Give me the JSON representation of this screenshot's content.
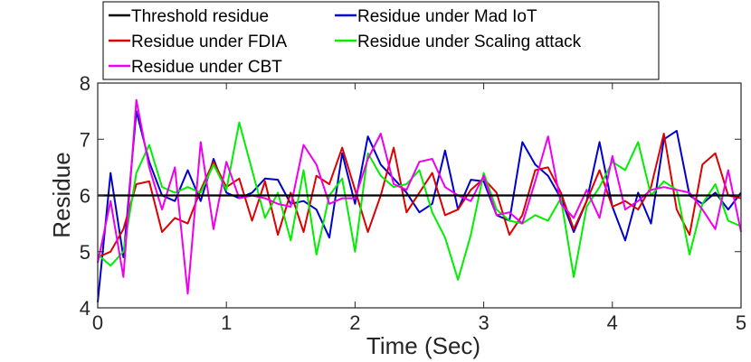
{
  "chart_data": {
    "type": "line",
    "xlabel": "Time (Sec)",
    "ylabel": "Residue",
    "xlim": [
      0,
      5
    ],
    "ylim": [
      4,
      8
    ],
    "xticks": [
      0,
      1,
      2,
      3,
      4,
      5
    ],
    "yticks": [
      4,
      5,
      6,
      7,
      8
    ],
    "grid": false,
    "legend_position": "top",
    "series": [
      {
        "name": "Threshold residue",
        "color": "#000000",
        "x": [
          0,
          5
        ],
        "y": [
          6.0,
          6.0
        ]
      },
      {
        "name": "Residue under Mad IoT",
        "color": "#0000cc",
        "x": [
          0,
          0.1,
          0.2,
          0.3,
          0.4,
          0.5,
          0.6,
          0.7,
          0.8,
          0.9,
          1.0,
          1.1,
          1.2,
          1.3,
          1.4,
          1.5,
          1.6,
          1.7,
          1.8,
          1.9,
          2.0,
          2.1,
          2.2,
          2.3,
          2.4,
          2.5,
          2.6,
          2.7,
          2.8,
          2.9,
          3.0,
          3.1,
          3.2,
          3.3,
          3.4,
          3.5,
          3.6,
          3.7,
          3.8,
          3.9,
          4.0,
          4.1,
          4.2,
          4.3,
          4.4,
          4.5,
          4.6,
          4.7,
          4.8,
          4.9,
          5.0
        ],
        "y": [
          4.1,
          6.4,
          4.9,
          7.5,
          6.6,
          6.0,
          5.9,
          6.45,
          5.9,
          6.65,
          6.05,
          5.95,
          6.05,
          6.3,
          6.28,
          5.85,
          5.9,
          5.75,
          5.25,
          6.75,
          5.85,
          7.05,
          6.55,
          6.3,
          6.05,
          5.7,
          5.85,
          6.8,
          5.75,
          6.28,
          6.25,
          5.65,
          5.55,
          6.95,
          6.55,
          6.35,
          5.95,
          5.35,
          5.9,
          6.95,
          5.8,
          5.2,
          6.05,
          5.5,
          7.0,
          7.15,
          6.0,
          5.85,
          6.05,
          5.75,
          6.05
        ]
      },
      {
        "name": "Residue under FDIA",
        "color": "#dd0000",
        "x": [
          0,
          0.1,
          0.2,
          0.3,
          0.4,
          0.5,
          0.6,
          0.7,
          0.8,
          0.9,
          1.0,
          1.1,
          1.2,
          1.3,
          1.4,
          1.5,
          1.6,
          1.7,
          1.8,
          1.9,
          2.0,
          2.1,
          2.2,
          2.3,
          2.4,
          2.5,
          2.6,
          2.7,
          2.8,
          2.9,
          3.0,
          3.1,
          3.2,
          3.3,
          3.4,
          3.5,
          3.6,
          3.7,
          3.8,
          3.9,
          4.0,
          4.1,
          4.2,
          4.3,
          4.4,
          4.5,
          4.6,
          4.7,
          4.8,
          4.9,
          5.0
        ],
        "y": [
          4.9,
          5.0,
          5.4,
          6.2,
          6.25,
          5.35,
          5.6,
          5.5,
          6.1,
          6.6,
          6.15,
          6.3,
          5.55,
          6.25,
          5.3,
          6.05,
          5.35,
          6.35,
          6.2,
          6.85,
          6.1,
          5.35,
          6.0,
          6.85,
          5.7,
          6.05,
          6.4,
          5.65,
          5.75,
          6.1,
          6.3,
          6.05,
          5.3,
          5.65,
          6.45,
          6.5,
          6.05,
          5.4,
          5.9,
          6.45,
          5.8,
          5.9,
          5.75,
          6.15,
          7.1,
          5.75,
          5.3,
          6.55,
          6.75,
          6.0,
          5.95
        ]
      },
      {
        "name": "Residue under Scaling attack",
        "color": "#00ee00",
        "x": [
          0,
          0.1,
          0.2,
          0.3,
          0.4,
          0.5,
          0.6,
          0.7,
          0.8,
          0.9,
          1.0,
          1.1,
          1.2,
          1.3,
          1.4,
          1.5,
          1.6,
          1.7,
          1.8,
          1.9,
          2.0,
          2.1,
          2.2,
          2.3,
          2.4,
          2.5,
          2.6,
          2.7,
          2.8,
          2.9,
          3.0,
          3.1,
          3.2,
          3.3,
          3.4,
          3.5,
          3.6,
          3.7,
          3.8,
          3.9,
          4.0,
          4.1,
          4.2,
          4.3,
          4.4,
          4.5,
          4.6,
          4.7,
          4.8,
          4.9,
          5.0
        ],
        "y": [
          4.95,
          4.75,
          5.0,
          6.4,
          6.9,
          6.15,
          6.05,
          6.15,
          6.05,
          6.55,
          6.1,
          7.3,
          6.45,
          5.6,
          6.05,
          5.2,
          6.45,
          4.95,
          6.0,
          6.3,
          5.0,
          6.75,
          6.35,
          6.15,
          6.2,
          6.45,
          5.7,
          5.25,
          4.5,
          5.3,
          6.4,
          5.75,
          5.55,
          5.5,
          5.65,
          5.55,
          5.95,
          4.55,
          5.8,
          6.15,
          6.6,
          6.45,
          6.95,
          6.0,
          6.25,
          6.1,
          4.95,
          5.85,
          6.2,
          5.55,
          5.45
        ]
      },
      {
        "name": "Residue under CBT",
        "color": "#ee00ee",
        "x": [
          0,
          0.1,
          0.2,
          0.3,
          0.4,
          0.5,
          0.6,
          0.7,
          0.8,
          0.9,
          1.0,
          1.1,
          1.2,
          1.3,
          1.4,
          1.5,
          1.6,
          1.7,
          1.8,
          1.9,
          2.0,
          2.1,
          2.2,
          2.3,
          2.4,
          2.5,
          2.6,
          2.7,
          2.8,
          2.9,
          3.0,
          3.1,
          3.2,
          3.3,
          3.4,
          3.5,
          3.6,
          3.7,
          3.8,
          3.9,
          4.0,
          4.1,
          4.2,
          4.3,
          4.4,
          4.5,
          4.6,
          4.7,
          4.8,
          4.9,
          5.0
        ],
        "y": [
          4.8,
          5.9,
          4.55,
          7.7,
          6.5,
          5.75,
          6.5,
          4.25,
          6.95,
          5.4,
          6.6,
          5.95,
          6.0,
          5.95,
          5.85,
          5.8,
          6.9,
          6.55,
          5.85,
          5.95,
          5.95,
          6.65,
          7.1,
          6.2,
          6.1,
          6.6,
          6.65,
          6.15,
          6.0,
          5.9,
          6.35,
          5.65,
          5.7,
          5.5,
          6.25,
          7.05,
          5.85,
          5.6,
          6.1,
          5.6,
          6.7,
          5.75,
          5.9,
          6.1,
          6.15,
          6.1,
          6.05,
          5.75,
          5.4,
          6.45,
          5.35
        ]
      }
    ]
  }
}
